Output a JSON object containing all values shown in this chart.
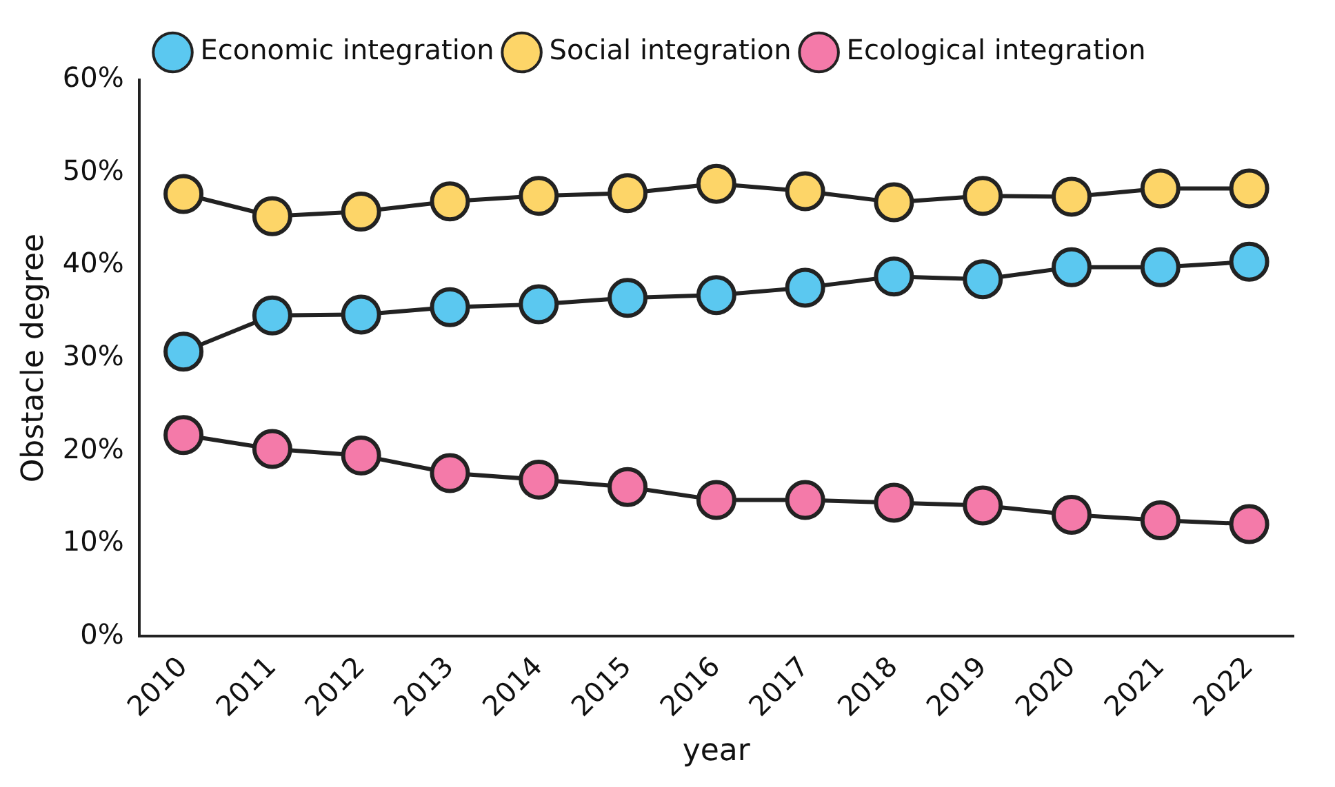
{
  "chart_data": {
    "type": "line",
    "xlabel": "year",
    "ylabel": "Obstacle degree",
    "categories": [
      "2010",
      "2011",
      "2012",
      "2013",
      "2014",
      "2015",
      "2016",
      "2017",
      "2018",
      "2019",
      "2020",
      "2021",
      "2022"
    ],
    "series": [
      {
        "name": "Economic integration",
        "color": "#5bc8f0",
        "values": [
          30.7,
          34.6,
          34.7,
          35.5,
          35.8,
          36.5,
          36.8,
          37.6,
          38.8,
          38.5,
          39.8,
          39.8,
          40.4
        ]
      },
      {
        "name": "Social integration",
        "color": "#fdd568",
        "values": [
          47.7,
          45.3,
          45.8,
          46.9,
          47.5,
          47.8,
          48.8,
          48.0,
          46.8,
          47.5,
          47.4,
          48.3,
          48.3
        ]
      },
      {
        "name": "Ecological integration",
        "color": "#f47aa9",
        "values": [
          21.7,
          20.2,
          19.5,
          17.6,
          16.9,
          16.1,
          14.7,
          14.7,
          14.4,
          14.1,
          13.1,
          12.5,
          12.1
        ]
      }
    ],
    "ylim": [
      0,
      60
    ],
    "yticks": [
      {
        "value": 0,
        "label": "0%"
      },
      {
        "value": 10,
        "label": "10%"
      },
      {
        "value": 20,
        "label": "20%"
      },
      {
        "value": 30,
        "label": "30%"
      },
      {
        "value": 40,
        "label": "40%"
      },
      {
        "value": 50,
        "label": "50%"
      },
      {
        "value": 60,
        "label": "60%"
      }
    ],
    "grid": false,
    "legend": "top",
    "marker": "circle",
    "line_style": "solid"
  }
}
